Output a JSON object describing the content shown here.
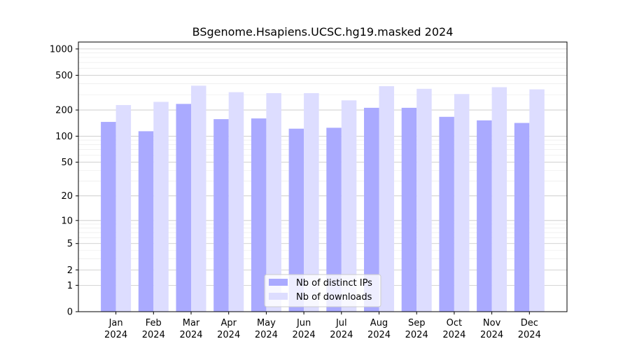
{
  "chart_data": {
    "type": "bar",
    "title": "BSgenome.Hsapiens.UCSC.hg19.masked 2024",
    "xlabel": "",
    "ylabel": "",
    "yscale": "log1p",
    "ylim": [
      0,
      1200
    ],
    "yticks": [
      0,
      1,
      2,
      5,
      10,
      20,
      50,
      100,
      200,
      500,
      1000
    ],
    "ytick_labels": [
      "0",
      "1",
      "2",
      "5",
      "10",
      "20",
      "50",
      "100",
      "200",
      "500",
      "1000"
    ],
    "categories": [
      [
        "Jan",
        "2024"
      ],
      [
        "Feb",
        "2024"
      ],
      [
        "Mar",
        "2024"
      ],
      [
        "Apr",
        "2024"
      ],
      [
        "May",
        "2024"
      ],
      [
        "Jun",
        "2024"
      ],
      [
        "Jul",
        "2024"
      ],
      [
        "Aug",
        "2024"
      ],
      [
        "Sep",
        "2024"
      ],
      [
        "Oct",
        "2024"
      ],
      [
        "Nov",
        "2024"
      ],
      [
        "Dec",
        "2024"
      ]
    ],
    "series": [
      {
        "name": "Nb of distinct IPs",
        "color": "#aaaaff",
        "values": [
          146,
          114,
          235,
          157,
          160,
          122,
          125,
          212,
          212,
          167,
          152,
          142
        ]
      },
      {
        "name": "Nb of downloads",
        "color": "#ddddff",
        "values": [
          228,
          248,
          380,
          320,
          312,
          312,
          258,
          375,
          350,
          305,
          365,
          345
        ]
      }
    ],
    "grid": true,
    "legend_position": "bottom-center"
  }
}
